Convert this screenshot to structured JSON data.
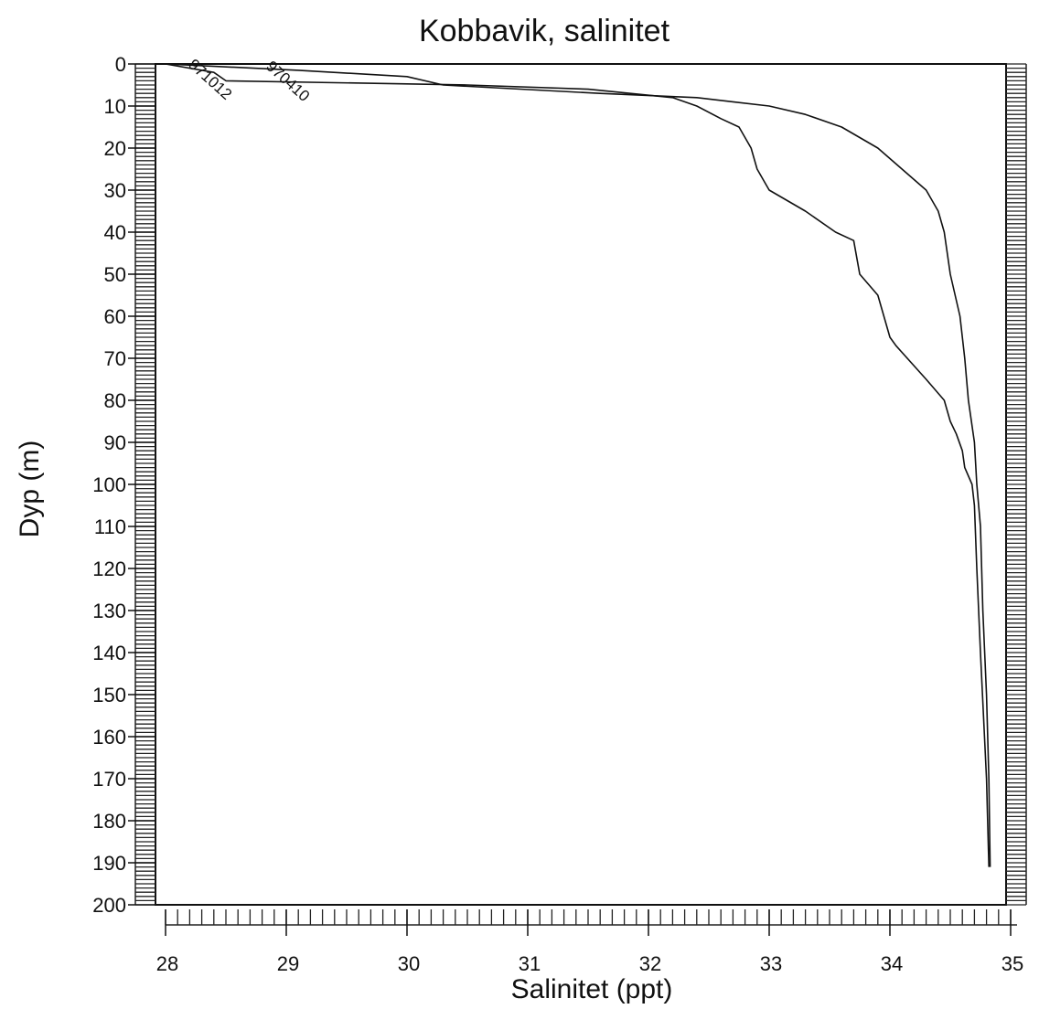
{
  "chart_data": {
    "type": "line",
    "title": "Kobbavik, salinitet",
    "xlabel": "Salinitet (ppt)",
    "ylabel": "Dyp (m)",
    "xlim": [
      28,
      35
    ],
    "ylim": [
      0,
      200
    ],
    "y_inverted": true,
    "x_ticks": [
      "28",
      "29",
      "30",
      "31",
      "32",
      "33",
      "34",
      "35"
    ],
    "y_ticks": [
      "0",
      "10",
      "20",
      "30",
      "40",
      "50",
      "60",
      "70",
      "80",
      "90",
      "100",
      "110",
      "120",
      "130",
      "140",
      "150",
      "160",
      "170",
      "180",
      "190",
      "200"
    ],
    "grid": false,
    "series": [
      {
        "name": "971012",
        "points": [
          [
            28.0,
            0
          ],
          [
            28.4,
            2
          ],
          [
            28.5,
            4
          ],
          [
            30.5,
            5
          ],
          [
            31.5,
            6
          ],
          [
            32.2,
            8
          ],
          [
            32.4,
            10
          ],
          [
            32.6,
            13
          ],
          [
            32.75,
            15
          ],
          [
            32.85,
            20
          ],
          [
            32.9,
            25
          ],
          [
            33.0,
            30
          ],
          [
            33.3,
            35
          ],
          [
            33.55,
            40
          ],
          [
            33.7,
            42
          ],
          [
            33.75,
            50
          ],
          [
            33.9,
            55
          ],
          [
            33.95,
            60
          ],
          [
            34.0,
            65
          ],
          [
            34.05,
            67
          ],
          [
            34.3,
            75
          ],
          [
            34.45,
            80
          ],
          [
            34.5,
            85
          ],
          [
            34.55,
            88
          ],
          [
            34.6,
            92
          ],
          [
            34.62,
            96
          ],
          [
            34.68,
            100
          ],
          [
            34.7,
            105
          ],
          [
            34.72,
            120
          ],
          [
            34.75,
            140
          ],
          [
            34.8,
            170
          ],
          [
            34.82,
            191
          ]
        ]
      },
      {
        "name": "970410",
        "points": [
          [
            28.0,
            0
          ],
          [
            29.1,
            1.5
          ],
          [
            30.0,
            3
          ],
          [
            30.3,
            5
          ],
          [
            31.6,
            7
          ],
          [
            32.4,
            8
          ],
          [
            32.7,
            9
          ],
          [
            33.0,
            10
          ],
          [
            33.3,
            12
          ],
          [
            33.6,
            15
          ],
          [
            33.9,
            20
          ],
          [
            34.1,
            25
          ],
          [
            34.3,
            30
          ],
          [
            34.4,
            35
          ],
          [
            34.45,
            40
          ],
          [
            34.5,
            50
          ],
          [
            34.58,
            60
          ],
          [
            34.62,
            70
          ],
          [
            34.65,
            80
          ],
          [
            34.7,
            90
          ],
          [
            34.72,
            100
          ],
          [
            34.75,
            110
          ],
          [
            34.76,
            120
          ],
          [
            34.77,
            130
          ],
          [
            34.8,
            150
          ],
          [
            34.82,
            170
          ],
          [
            34.83,
            191
          ]
        ]
      }
    ]
  }
}
